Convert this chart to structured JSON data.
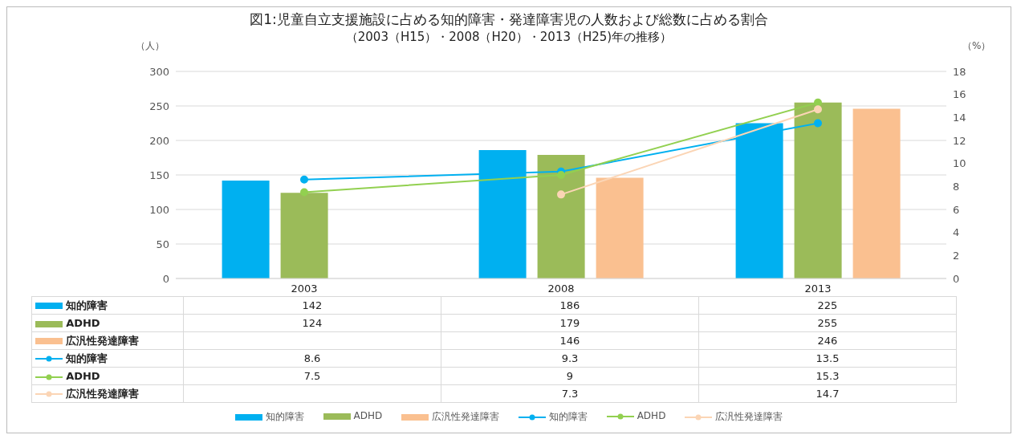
{
  "chart_data": {
    "type": "bar",
    "title": "図1:児童自立支援施設に占める知的障害・発達障害児の人数および総数に占める割合",
    "subtitle": "（2003（H15）・2008（H20）・2013（H25)年の推移）",
    "ylabel": "（人）",
    "y2label": "（%）",
    "categories": [
      "2003",
      "2008",
      "2013"
    ],
    "series": [
      {
        "name": "知的障害",
        "color": "#00b0f0",
        "values": [
          142,
          186,
          225
        ]
      },
      {
        "name": "ADHD",
        "color": "#9bbb59",
        "values": [
          124,
          179,
          255
        ]
      },
      {
        "name": "広汎性発達障害",
        "color": "#fac090",
        "values": [
          null,
          146,
          246
        ]
      },
      {
        "name": "知的障害",
        "type": "line",
        "axis": "y2",
        "color": "#00b0f0",
        "values": [
          8.6,
          9.3,
          13.5
        ]
      },
      {
        "name": "ADHD",
        "type": "line",
        "axis": "y2",
        "color": "#92d050",
        "values": [
          7.5,
          9,
          15.3
        ]
      },
      {
        "name": "広汎性発達障害",
        "type": "line",
        "axis": "y2",
        "color": "#fbd5b5",
        "values": [
          null,
          7.3,
          14.7
        ]
      }
    ],
    "ylim": [
      0,
      300
    ],
    "yticks": [
      0,
      50,
      100,
      150,
      200,
      250,
      300
    ],
    "y2lim": [
      0,
      18
    ],
    "y2ticks": [
      0,
      2,
      4,
      6,
      8,
      10,
      12,
      14,
      16,
      18
    ],
    "grid": "y",
    "legend": "bottom",
    "marker": "circle",
    "line_style": "solid",
    "data_labels": true
  }
}
